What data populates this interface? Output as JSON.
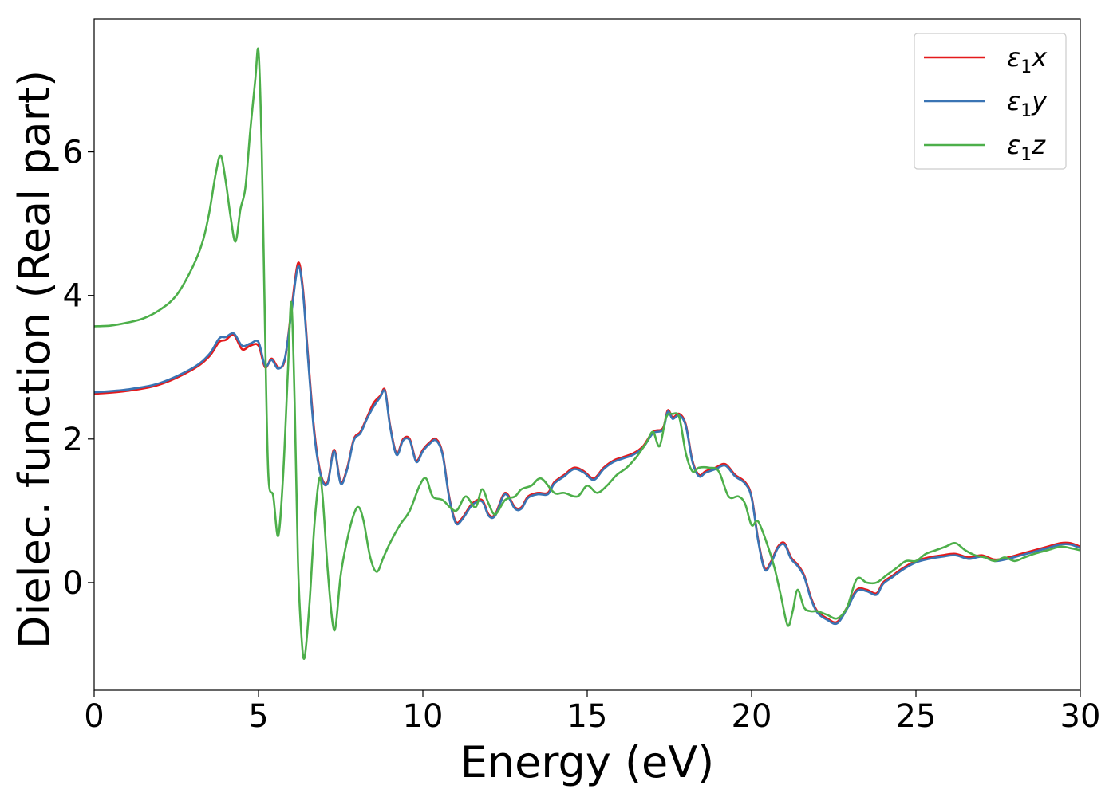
{
  "chart_data": {
    "type": "line",
    "title": "",
    "xlabel": "Energy (eV)",
    "ylabel": "Dielec. function (Real part)",
    "xlim": [
      0,
      30
    ],
    "ylim": [
      -1.5,
      7.85
    ],
    "xticks": [
      0,
      5,
      10,
      15,
      20,
      25,
      30
    ],
    "yticks": [
      0,
      2,
      4,
      6
    ],
    "grid": false,
    "legend_position": "top-right",
    "series": [
      {
        "name": "ε1x",
        "legend": {
          "base": "ε",
          "sub": "1",
          "var": "x"
        },
        "color": "#e41a1c",
        "x": [
          0,
          1,
          2,
          3,
          3.5,
          3.8,
          4.0,
          4.25,
          4.5,
          4.75,
          5.0,
          5.2,
          5.4,
          5.6,
          5.8,
          6.0,
          6.2,
          6.35,
          6.5,
          6.7,
          6.9,
          7.1,
          7.3,
          7.5,
          7.7,
          7.9,
          8.1,
          8.3,
          8.5,
          8.7,
          8.85,
          9.0,
          9.2,
          9.4,
          9.6,
          9.8,
          10.0,
          10.2,
          10.4,
          10.6,
          10.8,
          11.0,
          11.2,
          11.5,
          11.8,
          12.0,
          12.2,
          12.5,
          12.8,
          13.0,
          13.2,
          13.5,
          13.8,
          14.0,
          14.3,
          14.6,
          14.9,
          15.2,
          15.5,
          15.8,
          16.1,
          16.4,
          16.7,
          17.0,
          17.3,
          17.45,
          17.6,
          17.8,
          18.0,
          18.2,
          18.4,
          18.6,
          18.9,
          19.2,
          19.5,
          19.8,
          20.0,
          20.2,
          20.4,
          20.6,
          20.8,
          21.0,
          21.2,
          21.4,
          21.6,
          21.8,
          22.0,
          22.3,
          22.6,
          22.9,
          23.2,
          23.5,
          23.8,
          24.0,
          24.3,
          24.6,
          25.0,
          25.4,
          25.8,
          26.2,
          26.6,
          27.0,
          27.4,
          27.8,
          28.2,
          28.6,
          29.0,
          29.4,
          29.7,
          30.0
        ],
        "y": [
          2.63,
          2.67,
          2.76,
          2.97,
          3.15,
          3.35,
          3.38,
          3.45,
          3.25,
          3.3,
          3.3,
          3.0,
          3.12,
          3.0,
          3.1,
          3.8,
          4.45,
          4.1,
          3.2,
          2.1,
          1.5,
          1.4,
          1.85,
          1.4,
          1.6,
          2.0,
          2.1,
          2.3,
          2.5,
          2.6,
          2.68,
          2.2,
          1.8,
          2.0,
          2.0,
          1.7,
          1.85,
          1.95,
          2.0,
          1.8,
          1.2,
          0.85,
          0.9,
          1.1,
          1.15,
          0.95,
          0.95,
          1.25,
          1.05,
          1.05,
          1.2,
          1.25,
          1.25,
          1.4,
          1.5,
          1.6,
          1.55,
          1.45,
          1.6,
          1.7,
          1.75,
          1.8,
          1.9,
          2.1,
          2.15,
          2.4,
          2.3,
          2.35,
          2.2,
          1.7,
          1.5,
          1.55,
          1.6,
          1.65,
          1.5,
          1.4,
          1.2,
          0.6,
          0.2,
          0.3,
          0.5,
          0.55,
          0.35,
          0.25,
          0.1,
          -0.2,
          -0.4,
          -0.5,
          -0.55,
          -0.35,
          -0.1,
          -0.1,
          -0.15,
          0.0,
          0.1,
          0.2,
          0.3,
          0.35,
          0.38,
          0.4,
          0.35,
          0.38,
          0.32,
          0.35,
          0.4,
          0.45,
          0.5,
          0.55,
          0.55,
          0.5
        ]
      },
      {
        "name": "ε1y",
        "legend": {
          "base": "ε",
          "sub": "1",
          "var": "y"
        },
        "color": "#3a74b4",
        "x": [
          0,
          1,
          2,
          3,
          3.5,
          3.8,
          4.0,
          4.25,
          4.5,
          4.75,
          5.0,
          5.2,
          5.4,
          5.6,
          5.8,
          6.0,
          6.2,
          6.35,
          6.5,
          6.7,
          6.9,
          7.1,
          7.3,
          7.5,
          7.7,
          7.9,
          8.1,
          8.3,
          8.5,
          8.7,
          8.85,
          9.0,
          9.2,
          9.4,
          9.6,
          9.8,
          10.0,
          10.2,
          10.4,
          10.6,
          10.8,
          11.0,
          11.2,
          11.5,
          11.8,
          12.0,
          12.2,
          12.5,
          12.8,
          13.0,
          13.2,
          13.5,
          13.8,
          14.0,
          14.3,
          14.6,
          14.9,
          15.2,
          15.5,
          15.8,
          16.1,
          16.4,
          16.7,
          17.0,
          17.3,
          17.45,
          17.6,
          17.8,
          18.0,
          18.2,
          18.4,
          18.6,
          18.9,
          19.2,
          19.5,
          19.8,
          20.0,
          20.2,
          20.4,
          20.6,
          20.8,
          21.0,
          21.2,
          21.4,
          21.6,
          21.8,
          22.0,
          22.3,
          22.6,
          22.9,
          23.2,
          23.5,
          23.8,
          24.0,
          24.3,
          24.6,
          25.0,
          25.4,
          25.8,
          26.2,
          26.6,
          27.0,
          27.4,
          27.8,
          28.2,
          28.6,
          29.0,
          29.4,
          29.7,
          30.0
        ],
        "y": [
          2.65,
          2.69,
          2.78,
          2.99,
          3.18,
          3.4,
          3.42,
          3.47,
          3.3,
          3.33,
          3.35,
          3.02,
          3.1,
          2.98,
          3.12,
          3.75,
          4.4,
          4.05,
          3.15,
          2.05,
          1.48,
          1.38,
          1.83,
          1.38,
          1.58,
          1.98,
          2.08,
          2.28,
          2.45,
          2.58,
          2.66,
          2.18,
          1.78,
          1.98,
          1.98,
          1.68,
          1.83,
          1.93,
          1.98,
          1.78,
          1.18,
          0.83,
          0.88,
          1.08,
          1.13,
          0.93,
          0.93,
          1.23,
          1.03,
          1.03,
          1.18,
          1.23,
          1.23,
          1.38,
          1.48,
          1.58,
          1.53,
          1.43,
          1.58,
          1.68,
          1.73,
          1.78,
          1.88,
          2.08,
          2.13,
          2.38,
          2.28,
          2.33,
          2.18,
          1.68,
          1.48,
          1.53,
          1.58,
          1.63,
          1.48,
          1.38,
          1.18,
          0.58,
          0.18,
          0.28,
          0.48,
          0.53,
          0.33,
          0.23,
          0.08,
          -0.22,
          -0.42,
          -0.52,
          -0.57,
          -0.37,
          -0.12,
          -0.12,
          -0.17,
          -0.02,
          0.08,
          0.18,
          0.28,
          0.33,
          0.36,
          0.38,
          0.33,
          0.36,
          0.3,
          0.33,
          0.38,
          0.43,
          0.48,
          0.53,
          0.53,
          0.48
        ]
      },
      {
        "name": "ε1z",
        "legend": {
          "base": "ε",
          "sub": "1",
          "var": "z"
        },
        "color": "#4daf4a",
        "x": [
          0,
          0.5,
          1.0,
          1.5,
          2.0,
          2.5,
          3.0,
          3.3,
          3.5,
          3.7,
          3.85,
          4.0,
          4.15,
          4.3,
          4.45,
          4.6,
          4.75,
          4.9,
          5.0,
          5.1,
          5.2,
          5.3,
          5.45,
          5.6,
          5.75,
          5.9,
          6.0,
          6.1,
          6.2,
          6.3,
          6.4,
          6.55,
          6.7,
          6.85,
          6.95,
          7.1,
          7.25,
          7.35,
          7.5,
          7.7,
          7.9,
          8.05,
          8.2,
          8.4,
          8.6,
          8.8,
          9.0,
          9.3,
          9.6,
          9.9,
          10.1,
          10.3,
          10.6,
          11.0,
          11.3,
          11.6,
          11.8,
          12.0,
          12.2,
          12.5,
          12.8,
          13.0,
          13.3,
          13.6,
          14.0,
          14.3,
          14.7,
          15.0,
          15.3,
          15.6,
          15.9,
          16.2,
          16.5,
          16.8,
          17.0,
          17.2,
          17.4,
          17.6,
          17.8,
          18.0,
          18.2,
          18.4,
          18.7,
          19.0,
          19.3,
          19.6,
          19.8,
          20.0,
          20.2,
          20.5,
          20.7,
          20.9,
          21.1,
          21.25,
          21.4,
          21.6,
          21.8,
          22.0,
          22.3,
          22.6,
          22.9,
          23.2,
          23.5,
          23.8,
          24.1,
          24.4,
          24.7,
          25.0,
          25.3,
          25.6,
          25.9,
          26.2,
          26.5,
          26.8,
          27.1,
          27.4,
          27.7,
          28.0,
          28.3,
          28.6,
          29.0,
          29.4,
          29.7,
          30.0
        ],
        "y": [
          3.57,
          3.58,
          3.62,
          3.68,
          3.8,
          4.0,
          4.4,
          4.75,
          5.15,
          5.7,
          5.95,
          5.6,
          5.1,
          4.75,
          5.2,
          5.5,
          6.3,
          7.0,
          7.4,
          6.0,
          3.5,
          1.5,
          1.2,
          0.65,
          1.5,
          3.0,
          3.9,
          2.5,
          0.3,
          -0.7,
          -1.05,
          -0.3,
          0.8,
          1.45,
          1.2,
          0.2,
          -0.55,
          -0.6,
          0.1,
          0.6,
          0.95,
          1.05,
          0.85,
          0.35,
          0.15,
          0.35,
          0.55,
          0.8,
          1.0,
          1.35,
          1.45,
          1.2,
          1.15,
          1.0,
          1.2,
          1.05,
          1.3,
          1.1,
          0.95,
          1.15,
          1.2,
          1.3,
          1.35,
          1.45,
          1.25,
          1.25,
          1.2,
          1.35,
          1.25,
          1.35,
          1.5,
          1.6,
          1.75,
          1.95,
          2.1,
          1.9,
          2.3,
          2.35,
          2.3,
          1.8,
          1.55,
          1.6,
          1.6,
          1.55,
          1.2,
          1.2,
          1.1,
          0.8,
          0.85,
          0.5,
          0.2,
          -0.2,
          -0.6,
          -0.4,
          -0.1,
          -0.35,
          -0.4,
          -0.4,
          -0.45,
          -0.5,
          -0.35,
          0.05,
          0.0,
          0.0,
          0.1,
          0.2,
          0.3,
          0.3,
          0.4,
          0.45,
          0.5,
          0.55,
          0.45,
          0.38,
          0.35,
          0.3,
          0.35,
          0.3,
          0.35,
          0.4,
          0.45,
          0.5,
          0.48,
          0.45
        ]
      }
    ]
  }
}
